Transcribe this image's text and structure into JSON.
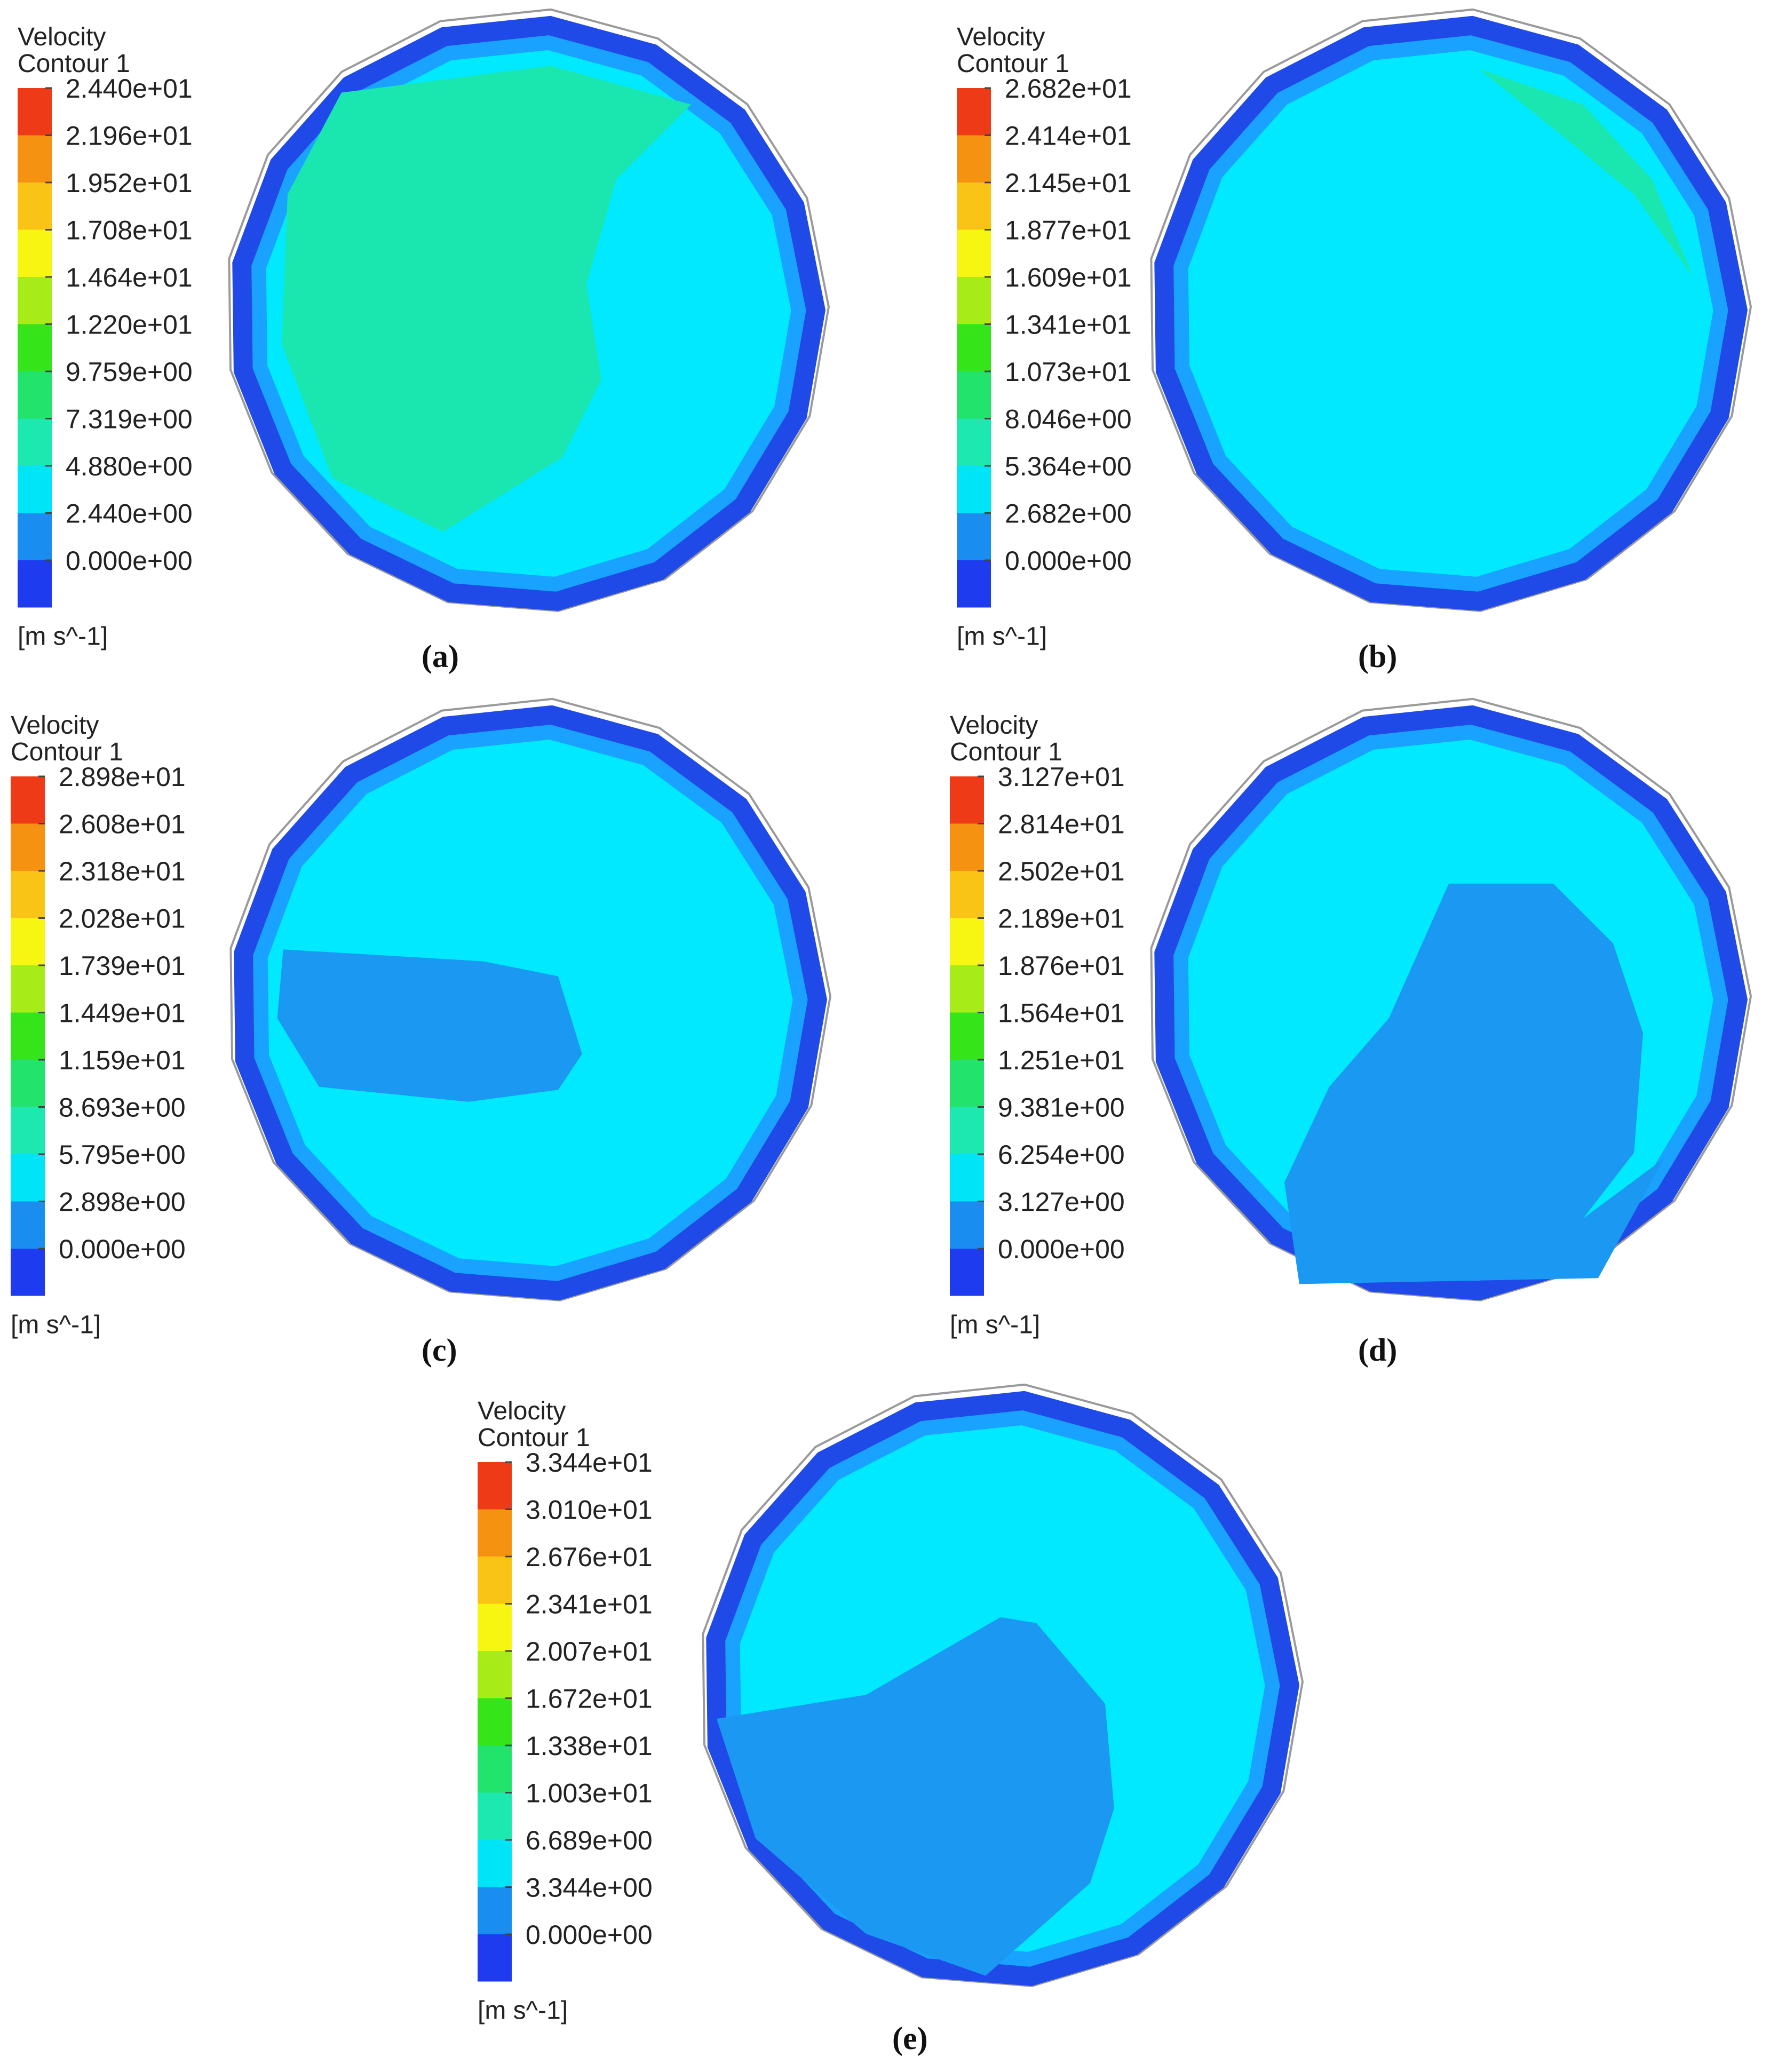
{
  "figure": {
    "colors": {
      "band_colors": [
        "#1e3bf0",
        "#1a8ef0",
        "#00e4f8",
        "#1de8b0",
        "#22e36b",
        "#36e41a",
        "#a7ec18",
        "#f6f612",
        "#f9c415",
        "#f69212",
        "#ef3a18"
      ],
      "wall_outer": "#1f4ae8",
      "wall_mid": "#19a2ff",
      "core": "#00e9ff",
      "zone_green": "#1ae6b0",
      "zone_low": "#1a98f2",
      "outline": "#9a9a9a"
    },
    "panels": [
      {
        "id": "a",
        "caption": "(a)",
        "legend_title_1": "Velocity",
        "legend_title_2": "Contour 1",
        "unit": "[m s^-1]",
        "ticks": [
          "2.440e+01",
          "2.196e+01",
          "1.952e+01",
          "1.708e+01",
          "1.464e+01",
          "1.220e+01",
          "9.759e+00",
          "7.319e+00",
          "4.880e+00",
          "2.440e+00",
          "0.000e+00"
        ],
        "zone": "green"
      },
      {
        "id": "b",
        "caption": "(b)",
        "legend_title_1": "Velocity",
        "legend_title_2": "Contour 1",
        "unit": "[m s^-1]",
        "ticks": [
          "2.682e+01",
          "2.414e+01",
          "2.145e+01",
          "1.877e+01",
          "1.609e+01",
          "1.341e+01",
          "1.073e+01",
          "8.046e+00",
          "5.364e+00",
          "2.682e+00",
          "0.000e+00"
        ],
        "zone": "green"
      },
      {
        "id": "c",
        "caption": "(c)",
        "legend_title_1": "Velocity",
        "legend_title_2": "Contour 1",
        "unit": "[m s^-1]",
        "ticks": [
          "2.898e+01",
          "2.608e+01",
          "2.318e+01",
          "2.028e+01",
          "1.739e+01",
          "1.449e+01",
          "1.159e+01",
          "8.693e+00",
          "5.795e+00",
          "2.898e+00",
          "0.000e+00"
        ],
        "zone": "low"
      },
      {
        "id": "d",
        "caption": "(d)",
        "legend_title_1": "Velocity",
        "legend_title_2": "Contour 1",
        "unit": "[m s^-1]",
        "ticks": [
          "3.127e+01",
          "2.814e+01",
          "2.502e+01",
          "2.189e+01",
          "1.876e+01",
          "1.564e+01",
          "1.251e+01",
          "9.381e+00",
          "6.254e+00",
          "3.127e+00",
          "0.000e+00"
        ],
        "zone": "low"
      },
      {
        "id": "e",
        "caption": "(e)",
        "legend_title_1": "Velocity",
        "legend_title_2": "Contour 1",
        "unit": "[m s^-1]",
        "ticks": [
          "3.344e+01",
          "3.010e+01",
          "2.676e+01",
          "2.341e+01",
          "2.007e+01",
          "1.672e+01",
          "1.338e+01",
          "1.003e+01",
          "6.689e+00",
          "3.344e+00",
          "0.000e+00"
        ],
        "zone": "low"
      }
    ]
  }
}
